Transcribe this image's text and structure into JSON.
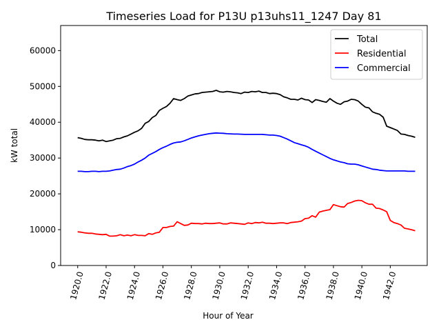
{
  "chart_data": {
    "type": "line",
    "title": "Timeseries Load for P13U p13uhs11_1247  Day 81",
    "xlabel": "Hour of Year",
    "ylabel": "kW total",
    "xlim": [
      1918.8,
      1944.6
    ],
    "ylim": [
      0,
      67000
    ],
    "x_ticks": [
      1920,
      1922,
      1924,
      1926,
      1928,
      1930,
      1932,
      1934,
      1936,
      1938,
      1940,
      1942
    ],
    "x_tick_labels": [
      "1920.0",
      "1922.0",
      "1924.0",
      "1926.0",
      "1928.0",
      "1930.0",
      "1932.0",
      "1934.0",
      "1936.0",
      "1938.0",
      "1940.0",
      "1942.0"
    ],
    "y_ticks": [
      0,
      10000,
      20000,
      30000,
      40000,
      50000,
      60000
    ],
    "y_tick_labels": [
      "0",
      "10000",
      "20000",
      "30000",
      "40000",
      "50000",
      "60000"
    ],
    "legend_position": "top-right",
    "x": [
      1920.0,
      1920.25,
      1920.5,
      1920.75,
      1921.0,
      1921.25,
      1921.5,
      1921.75,
      1922.0,
      1922.25,
      1922.5,
      1922.75,
      1923.0,
      1923.25,
      1923.5,
      1923.75,
      1924.0,
      1924.25,
      1924.5,
      1924.75,
      1925.0,
      1925.25,
      1925.5,
      1925.75,
      1926.0,
      1926.25,
      1926.5,
      1926.75,
      1927.0,
      1927.25,
      1927.5,
      1927.75,
      1928.0,
      1928.25,
      1928.5,
      1928.75,
      1929.0,
      1929.25,
      1929.5,
      1929.75,
      1930.0,
      1930.25,
      1930.5,
      1930.75,
      1931.0,
      1931.25,
      1931.5,
      1931.75,
      1932.0,
      1932.25,
      1932.5,
      1932.75,
      1933.0,
      1933.25,
      1933.5,
      1933.75,
      1934.0,
      1934.25,
      1934.5,
      1934.75,
      1935.0,
      1935.25,
      1935.5,
      1935.75,
      1936.0,
      1936.25,
      1936.5,
      1936.75,
      1937.0,
      1937.25,
      1937.5,
      1937.75,
      1938.0,
      1938.25,
      1938.5,
      1938.75,
      1939.0,
      1939.25,
      1939.5,
      1939.75,
      1940.0,
      1940.25,
      1940.5,
      1940.75,
      1941.0,
      1941.25,
      1941.5,
      1941.75,
      1942.0,
      1942.25,
      1942.5,
      1942.75,
      1943.0,
      1943.25,
      1943.5,
      1943.75
    ],
    "series": [
      {
        "name": "Total",
        "color": "#000000",
        "values": [
          35700,
          35500,
          35200,
          35100,
          35100,
          35000,
          34800,
          35000,
          34600,
          34800,
          35000,
          35400,
          35500,
          35900,
          36200,
          36700,
          37200,
          37600,
          38300,
          39700,
          40200,
          41300,
          41900,
          43300,
          43900,
          44400,
          45300,
          46600,
          46300,
          46100,
          46600,
          47300,
          47600,
          47900,
          48000,
          48300,
          48400,
          48500,
          48600,
          48900,
          48500,
          48400,
          48600,
          48500,
          48300,
          48200,
          48000,
          48400,
          48300,
          48600,
          48500,
          48700,
          48300,
          48300,
          48000,
          48100,
          48000,
          47700,
          47100,
          46800,
          46400,
          46400,
          46200,
          46700,
          46300,
          46200,
          45500,
          46300,
          46100,
          45800,
          45600,
          46600,
          45900,
          45300,
          45000,
          45700,
          45900,
          46400,
          46300,
          45900,
          45000,
          44200,
          44000,
          42900,
          42500,
          42200,
          41400,
          38900,
          38500,
          38100,
          37700,
          36700,
          36600,
          36300,
          36100,
          35800
        ]
      },
      {
        "name": "Residential",
        "color": "#ff0000",
        "values": [
          9400,
          9300,
          9100,
          9000,
          9000,
          8800,
          8700,
          8600,
          8700,
          8200,
          8200,
          8300,
          8600,
          8300,
          8500,
          8300,
          8600,
          8400,
          8400,
          8300,
          8900,
          8700,
          9100,
          9300,
          10600,
          10600,
          10900,
          11000,
          12200,
          11700,
          11200,
          11300,
          11800,
          11700,
          11700,
          11600,
          11800,
          11700,
          11700,
          11800,
          11900,
          11600,
          11600,
          11900,
          11800,
          11700,
          11600,
          11500,
          11900,
          11700,
          12000,
          11900,
          12100,
          11800,
          11800,
          11700,
          11800,
          11900,
          11900,
          11700,
          12000,
          12100,
          12200,
          12400,
          13100,
          13200,
          13900,
          13500,
          14900,
          15200,
          15400,
          15600,
          17000,
          16700,
          16400,
          16300,
          17300,
          17600,
          18000,
          18200,
          18100,
          17500,
          17100,
          17100,
          16000,
          15900,
          15500,
          15000,
          12600,
          12000,
          11700,
          11300,
          10400,
          10200,
          10000,
          9700
        ]
      },
      {
        "name": "Commercial",
        "color": "#0000ff",
        "values": [
          26300,
          26300,
          26200,
          26200,
          26300,
          26300,
          26200,
          26300,
          26300,
          26400,
          26600,
          26800,
          26900,
          27200,
          27600,
          27900,
          28300,
          28900,
          29400,
          30000,
          30800,
          31300,
          31800,
          32400,
          32900,
          33300,
          33800,
          34200,
          34400,
          34500,
          34800,
          35200,
          35600,
          35900,
          36200,
          36400,
          36600,
          36800,
          36900,
          37000,
          36950,
          36900,
          36800,
          36750,
          36700,
          36700,
          36650,
          36600,
          36600,
          36600,
          36600,
          36600,
          36600,
          36500,
          36400,
          36400,
          36300,
          36100,
          35700,
          35300,
          34800,
          34300,
          34000,
          33700,
          33400,
          33000,
          32400,
          31900,
          31400,
          30900,
          30400,
          29900,
          29500,
          29200,
          28900,
          28700,
          28400,
          28300,
          28300,
          28100,
          27800,
          27500,
          27200,
          26900,
          26800,
          26600,
          26500,
          26400,
          26400,
          26400,
          26400,
          26400,
          26400,
          26300,
          26300,
          26300
        ]
      }
    ]
  }
}
